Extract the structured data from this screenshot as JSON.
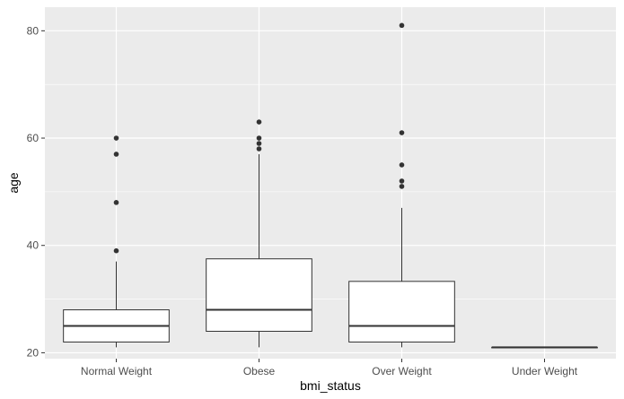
{
  "chart_data": {
    "type": "boxplot",
    "xlabel": "bmi_status",
    "ylabel": "age",
    "ylim": [
      18.9,
      84.4
    ],
    "yticks": [
      20,
      40,
      60,
      80
    ],
    "categories": [
      "Normal Weight",
      "Obese",
      "Over Weight",
      "Under Weight"
    ],
    "boxes": [
      {
        "category": "Normal Weight",
        "min": 21,
        "q1": 22,
        "median": 25,
        "q3": 28,
        "max": 37,
        "outliers": [
          39,
          48,
          57,
          60
        ]
      },
      {
        "category": "Obese",
        "min": 21,
        "q1": 24,
        "median": 28,
        "q3": 37.5,
        "max": 57,
        "outliers": [
          58,
          59,
          60,
          63
        ]
      },
      {
        "category": "Over Weight",
        "min": 21,
        "q1": 22,
        "median": 25,
        "q3": 33.3,
        "max": 47,
        "outliers": [
          51,
          52,
          55,
          61,
          81
        ]
      },
      {
        "category": "Under Weight",
        "min": 21,
        "q1": 21,
        "median": 21,
        "q3": 21,
        "max": 21,
        "outliers": []
      }
    ],
    "grid": true,
    "colors": {
      "panel": "#ebebeb",
      "grid": "#ffffff",
      "box_fill": "#ffffff",
      "line": "#333333"
    }
  }
}
